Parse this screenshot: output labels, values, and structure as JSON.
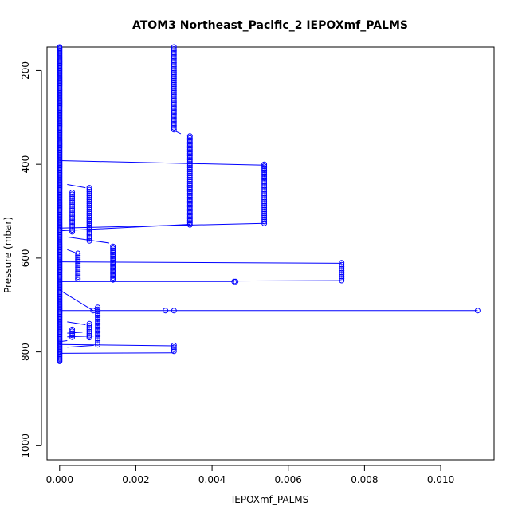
{
  "chart_data": {
    "type": "scatter",
    "title": "ATOM3 Northeast_Pacific_2 IEPOXmf_PALMS",
    "xlabel": "IEPOXmf_PALMS",
    "ylabel": "Pressure (mbar)",
    "xlim": [
      -0.00033,
      0.0114
    ],
    "ylim": [
      1030,
      150
    ],
    "y_reversed": true,
    "x_ticks": [
      0.0,
      0.002,
      0.004,
      0.006,
      0.008,
      0.01
    ],
    "x_tick_labels": [
      "0.000",
      "0.002",
      "0.004",
      "0.006",
      "0.008",
      "0.010"
    ],
    "y_ticks": [
      200,
      400,
      600,
      800,
      1000
    ],
    "y_tick_labels": [
      "200",
      "400",
      "600",
      "800",
      "1000"
    ],
    "grid": false,
    "legend": "none",
    "series_color": "#0000ff",
    "marker": "open-circle",
    "connect_points": true,
    "column_at_zero": {
      "x": 0.0,
      "p_min": 150,
      "p_max": 822
    },
    "clusters": [
      {
        "x": 0.003,
        "p_start": 150,
        "p_end": 328
      },
      {
        "x": 0.00342,
        "p_start": 340,
        "p_end": 530
      },
      {
        "x": 0.00537,
        "p_start": 400,
        "p_end": 528
      },
      {
        "x": 0.00078,
        "p_start": 450,
        "p_end": 565
      },
      {
        "x": 0.00033,
        "p_start": 460,
        "p_end": 545
      },
      {
        "x": 0.0014,
        "p_start": 575,
        "p_end": 648
      },
      {
        "x": 0.00048,
        "p_start": 590,
        "p_end": 648
      },
      {
        "x": 0.0074,
        "p_start": 610,
        "p_end": 648
      },
      {
        "x": 0.001,
        "p_start": 705,
        "p_end": 788
      },
      {
        "x": 0.00078,
        "p_start": 740,
        "p_end": 770
      },
      {
        "x": 0.00033,
        "p_start": 752,
        "p_end": 772
      },
      {
        "x": 0.003,
        "p_start": 786,
        "p_end": 802
      }
    ],
    "isolated_points": [
      {
        "x": 0.00462,
        "y": 650
      },
      {
        "x": 0.00458,
        "y": 650
      },
      {
        "x": 0.00088,
        "y": 712
      },
      {
        "x": 0.00278,
        "y": 712
      },
      {
        "x": 0.003,
        "y": 712
      },
      {
        "x": 0.01097,
        "y": 712
      }
    ],
    "connector_lines": [
      {
        "x1": 0.003,
        "y1": 328,
        "x2": 0.00318,
        "y2": 335
      },
      {
        "x1": 0.0,
        "y1": 392,
        "x2": 0.00537,
        "y2": 402
      },
      {
        "x1": 0.0,
        "y1": 536,
        "x2": 0.00537,
        "y2": 526
      },
      {
        "x1": 0.0,
        "y1": 542,
        "x2": 0.00342,
        "y2": 528
      },
      {
        "x1": 0.0002,
        "y1": 443,
        "x2": 0.00068,
        "y2": 450
      },
      {
        "x1": 0.0002,
        "y1": 555,
        "x2": 0.0013,
        "y2": 568
      },
      {
        "x1": 0.0002,
        "y1": 582,
        "x2": 0.0004,
        "y2": 588
      },
      {
        "x1": 0.0,
        "y1": 608,
        "x2": 0.0074,
        "y2": 611
      },
      {
        "x1": 0.0,
        "y1": 650,
        "x2": 0.0074,
        "y2": 648
      },
      {
        "x1": 0.0,
        "y1": 650,
        "x2": 0.00458,
        "y2": 650
      },
      {
        "x1": 0.0,
        "y1": 668,
        "x2": 0.00088,
        "y2": 712
      },
      {
        "x1": 0.0,
        "y1": 712,
        "x2": 0.01097,
        "y2": 712
      },
      {
        "x1": 0.0002,
        "y1": 736,
        "x2": 0.00068,
        "y2": 742
      },
      {
        "x1": 0.0002,
        "y1": 760,
        "x2": 0.0006,
        "y2": 758
      },
      {
        "x1": 0.0002,
        "y1": 768,
        "x2": 0.0009,
        "y2": 766
      },
      {
        "x1": 0.0,
        "y1": 778,
        "x2": 0.0002,
        "y2": 776
      },
      {
        "x1": 0.0002,
        "y1": 790,
        "x2": 0.0009,
        "y2": 786
      },
      {
        "x1": 0.0,
        "y1": 784,
        "x2": 0.003,
        "y2": 787
      },
      {
        "x1": 0.0,
        "y1": 803,
        "x2": 0.003,
        "y2": 802
      }
    ]
  }
}
